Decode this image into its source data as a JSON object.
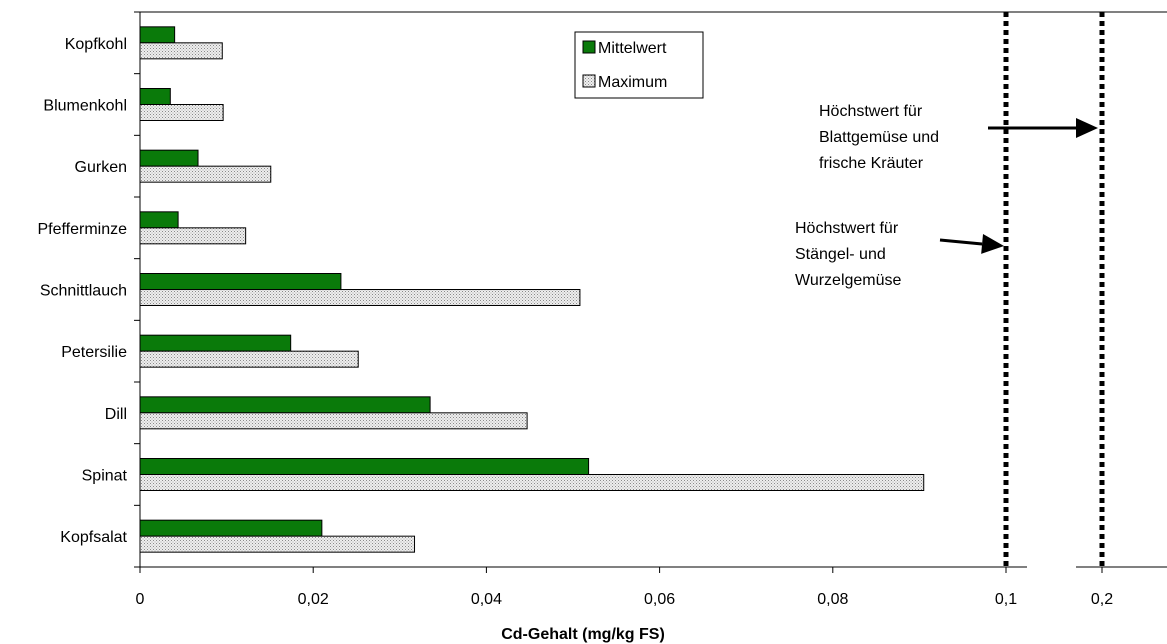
{
  "chart_data": {
    "type": "bar",
    "orientation": "horizontal",
    "xlabel": "Cd-Gehalt (mg/kg FS)",
    "categories": [
      "Kopfkohl",
      "Blumenkohl",
      "Gurken",
      "Pfefferminze",
      "Schnittlauch",
      "Petersilie",
      "Dill",
      "Spinat",
      "Kopfsalat"
    ],
    "series": [
      {
        "name": "Mittelwert",
        "color": "#0a7a0a",
        "values": [
          0.004,
          0.0035,
          0.0067,
          0.0044,
          0.0232,
          0.0174,
          0.0335,
          0.0518,
          0.021
        ]
      },
      {
        "name": "Maximum",
        "color": "#dcdcdc",
        "pattern": "dotted-grey",
        "values": [
          0.0095,
          0.0096,
          0.0151,
          0.0122,
          0.0508,
          0.0252,
          0.0447,
          0.0905,
          0.0317
        ]
      }
    ],
    "x_ticks": [
      "0",
      "0,02",
      "0,04",
      "0,06",
      "0,08",
      "0,1",
      "0,2"
    ],
    "xlim": [
      0,
      0.1
    ],
    "axis_break": "between 0,1 and 0,2",
    "grid": false,
    "legend": {
      "position": "top-center",
      "entries": [
        "Mittelwert",
        "Maximum"
      ]
    },
    "reference_lines": [
      {
        "value": 0.1,
        "style": "dotted",
        "label_lines": [
          "Höchstwert für",
          "Stängel- und",
          "Wurzelgemüse"
        ]
      },
      {
        "value": 0.2,
        "style": "dotted",
        "label_lines": [
          "Höchstwert für",
          "Blattgemüse und",
          "frische Kräuter"
        ]
      }
    ]
  }
}
